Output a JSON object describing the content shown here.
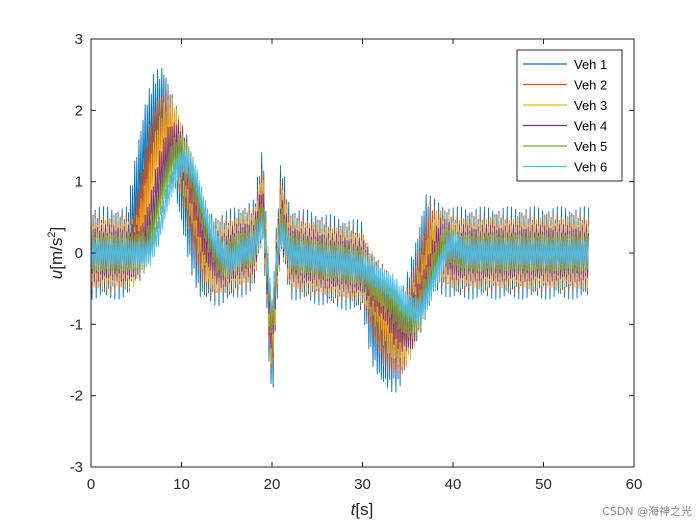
{
  "chart_data": {
    "type": "line",
    "title": "",
    "xlabel": "t[s]",
    "xlabel_var": "t",
    "xlabel_unit": "[s]",
    "ylabel_var": "u",
    "ylabel_unit": "[m/s",
    "ylabel_sup": "2",
    "ylabel_close": "]",
    "xlim": [
      0,
      60
    ],
    "ylim": [
      -3,
      3
    ],
    "xticks": [
      0,
      10,
      20,
      30,
      40,
      50,
      60
    ],
    "yticks": [
      -3,
      -2,
      -1,
      0,
      1,
      2,
      3
    ],
    "grid": false,
    "legend_position": "top-right",
    "series": [
      {
        "name": "Veh 1",
        "color": "#0072BD",
        "x": [
          0,
          4,
          5,
          6,
          7,
          8,
          9,
          10,
          11,
          12,
          14,
          16,
          18,
          19,
          19.5,
          20,
          20.5,
          21,
          22,
          30,
          31,
          32,
          33,
          34,
          35,
          36,
          37,
          38,
          40,
          55
        ],
        "y": [
          0,
          0,
          0.8,
          1.5,
          1.9,
          2.0,
          1.6,
          1.0,
          0.4,
          0.0,
          -0.1,
          0.0,
          0.1,
          0.9,
          -0.5,
          -1.6,
          -0.2,
          0.7,
          0.0,
          -0.2,
          -0.9,
          -1.2,
          -1.3,
          -1.3,
          -0.9,
          -0.4,
          0.2,
          0.1,
          0.0,
          0.0
        ],
        "amplitude": 0.65
      },
      {
        "name": "Veh 2",
        "color": "#D95319",
        "x": [
          0,
          4.5,
          5.5,
          6.5,
          7.5,
          8.5,
          9.5,
          10.5,
          11.5,
          12.5,
          14,
          16,
          18,
          19,
          19.5,
          20,
          20.5,
          21,
          22,
          30,
          31.5,
          32.5,
          33.5,
          34.5,
          35.5,
          36.5,
          37.5,
          38.5,
          40,
          55
        ],
        "y": [
          0,
          0,
          0.6,
          1.3,
          1.7,
          1.8,
          1.5,
          1.0,
          0.4,
          0.0,
          -0.1,
          0.0,
          0.1,
          0.8,
          -0.4,
          -1.4,
          -0.2,
          0.6,
          0.0,
          -0.2,
          -0.8,
          -1.1,
          -1.2,
          -1.2,
          -0.8,
          -0.3,
          0.2,
          0.1,
          0.0,
          0.0
        ],
        "amplitude": 0.55
      },
      {
        "name": "Veh 3",
        "color": "#EDB120",
        "x": [
          0,
          5,
          6,
          7,
          8,
          9,
          10,
          11,
          12,
          13,
          14,
          16,
          18,
          19,
          19.5,
          20,
          20.5,
          21,
          22,
          30,
          32,
          33,
          34,
          35,
          36,
          37,
          38,
          39,
          40,
          55
        ],
        "y": [
          0,
          0,
          0.5,
          1.2,
          1.6,
          1.7,
          1.4,
          0.9,
          0.4,
          0.0,
          -0.1,
          0.0,
          0.1,
          0.7,
          -0.3,
          -1.3,
          -0.2,
          0.5,
          0.0,
          -0.2,
          -0.7,
          -1.0,
          -1.1,
          -1.1,
          -0.8,
          -0.3,
          0.1,
          0.1,
          0.0,
          0.0
        ],
        "amplitude": 0.5
      },
      {
        "name": "Veh 4",
        "color": "#7E2F8E",
        "x": [
          0,
          5.5,
          6.5,
          7.5,
          8.5,
          9.5,
          10.5,
          11.5,
          12.5,
          13.5,
          14.5,
          16,
          18,
          19,
          19.5,
          20,
          20.5,
          21,
          22,
          30,
          32.5,
          33.5,
          34.5,
          35.5,
          36.5,
          37.5,
          38.5,
          39.5,
          40,
          55
        ],
        "y": [
          0,
          0,
          0.4,
          1.0,
          1.4,
          1.5,
          1.3,
          0.8,
          0.3,
          0.0,
          -0.1,
          0.0,
          0.1,
          0.6,
          -0.3,
          -1.1,
          -0.1,
          0.4,
          0.0,
          -0.2,
          -0.6,
          -0.9,
          -1.0,
          -1.0,
          -0.7,
          -0.3,
          0.1,
          0.1,
          0.0,
          0.0
        ],
        "amplitude": 0.4
      },
      {
        "name": "Veh 5",
        "color": "#77AC30",
        "x": [
          0,
          6,
          7,
          8,
          9,
          10,
          11,
          12,
          13,
          14,
          15,
          16,
          18,
          19,
          19.5,
          20,
          20.5,
          21,
          22,
          30,
          33,
          34,
          35,
          36,
          37,
          38,
          39,
          40,
          41,
          55
        ],
        "y": [
          0,
          0,
          0.4,
          0.9,
          1.3,
          1.4,
          1.2,
          0.7,
          0.3,
          0.0,
          -0.1,
          0.0,
          0.1,
          0.5,
          -0.2,
          -1.0,
          -0.1,
          0.4,
          0.0,
          -0.2,
          -0.6,
          -0.8,
          -0.9,
          -0.9,
          -0.6,
          -0.2,
          0.1,
          0.1,
          0.0,
          0.0
        ],
        "amplitude": 0.3
      },
      {
        "name": "Veh 6",
        "color": "#4DBEEE",
        "x": [
          0,
          6.5,
          7.5,
          8.5,
          9.5,
          10.5,
          11.5,
          12.5,
          13.5,
          14.5,
          15.5,
          16.5,
          18,
          19,
          19.5,
          20,
          20.5,
          21,
          22,
          30,
          33.5,
          34.5,
          35.5,
          36.5,
          37.5,
          38.5,
          39.5,
          40.5,
          41.5,
          55
        ],
        "y": [
          0,
          0,
          0.3,
          0.8,
          1.2,
          1.3,
          1.1,
          0.6,
          0.2,
          0.0,
          -0.1,
          0.0,
          0.1,
          0.4,
          -0.2,
          -0.8,
          -0.1,
          0.3,
          0.0,
          -0.2,
          -0.5,
          -0.7,
          -0.8,
          -0.8,
          -0.5,
          -0.2,
          0.1,
          0.1,
          0.0,
          0.0
        ],
        "amplitude": 0.2
      }
    ]
  },
  "watermark": "CSDN @海神之光"
}
